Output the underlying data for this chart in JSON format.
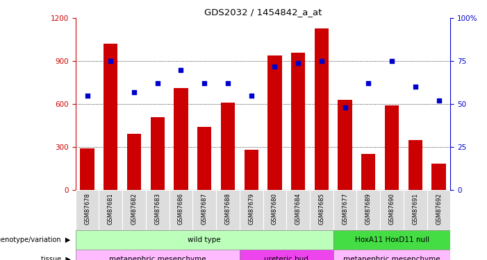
{
  "title": "GDS2032 / 1454842_a_at",
  "samples": [
    "GSM87678",
    "GSM87681",
    "GSM87682",
    "GSM87683",
    "GSM87686",
    "GSM87687",
    "GSM87688",
    "GSM87679",
    "GSM87680",
    "GSM87684",
    "GSM87685",
    "GSM87677",
    "GSM87689",
    "GSM87690",
    "GSM87691",
    "GSM87692"
  ],
  "counts": [
    290,
    1020,
    390,
    510,
    710,
    440,
    610,
    280,
    940,
    960,
    1130,
    630,
    250,
    590,
    350,
    185
  ],
  "percentiles": [
    55,
    75,
    57,
    62,
    70,
    62,
    62,
    55,
    72,
    74,
    75,
    48,
    62,
    75,
    60,
    52
  ],
  "bar_color": "#cc0000",
  "dot_color": "#0000cc",
  "ylim_left": [
    0,
    1200
  ],
  "ylim_right": [
    0,
    100
  ],
  "yticks_left": [
    0,
    300,
    600,
    900,
    1200
  ],
  "yticks_right": [
    0,
    25,
    50,
    75,
    100
  ],
  "ytick_labels_right": [
    "0",
    "25",
    "50",
    "75",
    "100%"
  ],
  "grid_values": [
    300,
    600,
    900
  ],
  "genotype_groups": [
    {
      "label": "wild type",
      "start": 0,
      "end": 10,
      "color": "#bbffbb"
    },
    {
      "label": "HoxA11 HoxD11 null",
      "start": 11,
      "end": 15,
      "color": "#44dd44"
    }
  ],
  "tissue_groups": [
    {
      "label": "metanephric mesenchyme",
      "start": 0,
      "end": 6,
      "color": "#ffbbff"
    },
    {
      "label": "ureteric bud",
      "start": 7,
      "end": 10,
      "color": "#ee44ee"
    },
    {
      "label": "metanephric mesenchyme",
      "start": 11,
      "end": 15,
      "color": "#ffbbff"
    }
  ],
  "left_axis_color": "#cc0000",
  "right_axis_color": "#0000cc",
  "background_color": "#ffffff",
  "sample_bg_color": "#dddddd",
  "bar_width": 0.6
}
